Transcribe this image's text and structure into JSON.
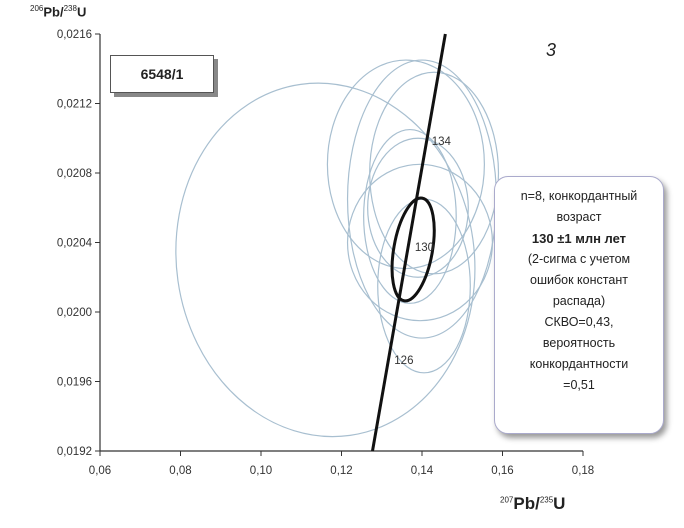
{
  "axes": {
    "y_label_sup": "206",
    "y_label_main": "Pb/",
    "y_label_sup2": "238",
    "y_label_end": "U",
    "x_label_sup": "207",
    "x_label_main": "Pb/",
    "x_label_sup2": "235",
    "x_label_end": "U"
  },
  "sample_label": "6548/1",
  "panel_number": "3",
  "info": {
    "line1": "n=8, конкордантный",
    "line2": "возраст",
    "line3": "130 ±1 млн лет",
    "line4": "(2-сигма  с учетом",
    "line5": "ошибок констант",
    "line6": "распада)",
    "line7": "СКВО=0,43,",
    "line8": "вероятность",
    "line9": "конкордантности",
    "line10": "=0,51"
  },
  "chart_data": {
    "type": "scatter",
    "xlim": [
      0.06,
      0.18
    ],
    "ylim": [
      0.0192,
      0.0216
    ],
    "x_ticks": [
      "0,06",
      "0,08",
      "0,10",
      "0,12",
      "0,14",
      "0,16",
      "0,18"
    ],
    "y_ticks": [
      "0,0192",
      "0,0196",
      "0,0200",
      "0,0204",
      "0,0208",
      "0,0212",
      "0,0216"
    ],
    "x_tick_values": [
      0.06,
      0.08,
      0.1,
      0.12,
      0.14,
      0.16,
      0.18
    ],
    "y_tick_values": [
      0.0192,
      0.0196,
      0.02,
      0.0204,
      0.0208,
      0.0212,
      0.0216
    ],
    "concordia": {
      "points": [
        [
          0.1277,
          0.0192
        ],
        [
          0.1458,
          0.0216
        ]
      ],
      "labels": [
        {
          "text": "126",
          "x": 0.1355,
          "y": 0.0197
        },
        {
          "text": "130",
          "x": 0.1406,
          "y": 0.02035
        },
        {
          "text": "134",
          "x": 0.1448,
          "y": 0.02096
        }
      ]
    },
    "error_ellipses": [
      {
        "cx": 0.116,
        "cy": 0.0203,
        "rx": 0.037,
        "ry": 0.00102,
        "angle": -8
      },
      {
        "cx": 0.136,
        "cy": 0.02085,
        "rx": 0.0195,
        "ry": 0.0006,
        "angle": 0
      },
      {
        "cx": 0.14,
        "cy": 0.02065,
        "rx": 0.0185,
        "ry": 0.0008,
        "angle": 0
      },
      {
        "cx": 0.143,
        "cy": 0.0208,
        "rx": 0.016,
        "ry": 0.00058,
        "angle": 0
      },
      {
        "cx": 0.139,
        "cy": 0.0206,
        "rx": 0.0125,
        "ry": 0.0004,
        "angle": 0
      },
      {
        "cx": 0.137,
        "cy": 0.02055,
        "rx": 0.0115,
        "ry": 0.0005,
        "angle": 0
      },
      {
        "cx": 0.1405,
        "cy": 0.02015,
        "rx": 0.0115,
        "ry": 0.0005,
        "angle": 0
      },
      {
        "cx": 0.1395,
        "cy": 0.0204,
        "rx": 0.018,
        "ry": 0.00045,
        "angle": 0
      }
    ],
    "concordia_age_ellipse": {
      "cx": 0.1378,
      "cy": 0.02036,
      "rx": 0.0048,
      "ry": 0.0003,
      "angle": 10
    }
  },
  "colors": {
    "ellipse": "#a8bfd0",
    "concordia": "#111111",
    "axis": "#333333"
  }
}
